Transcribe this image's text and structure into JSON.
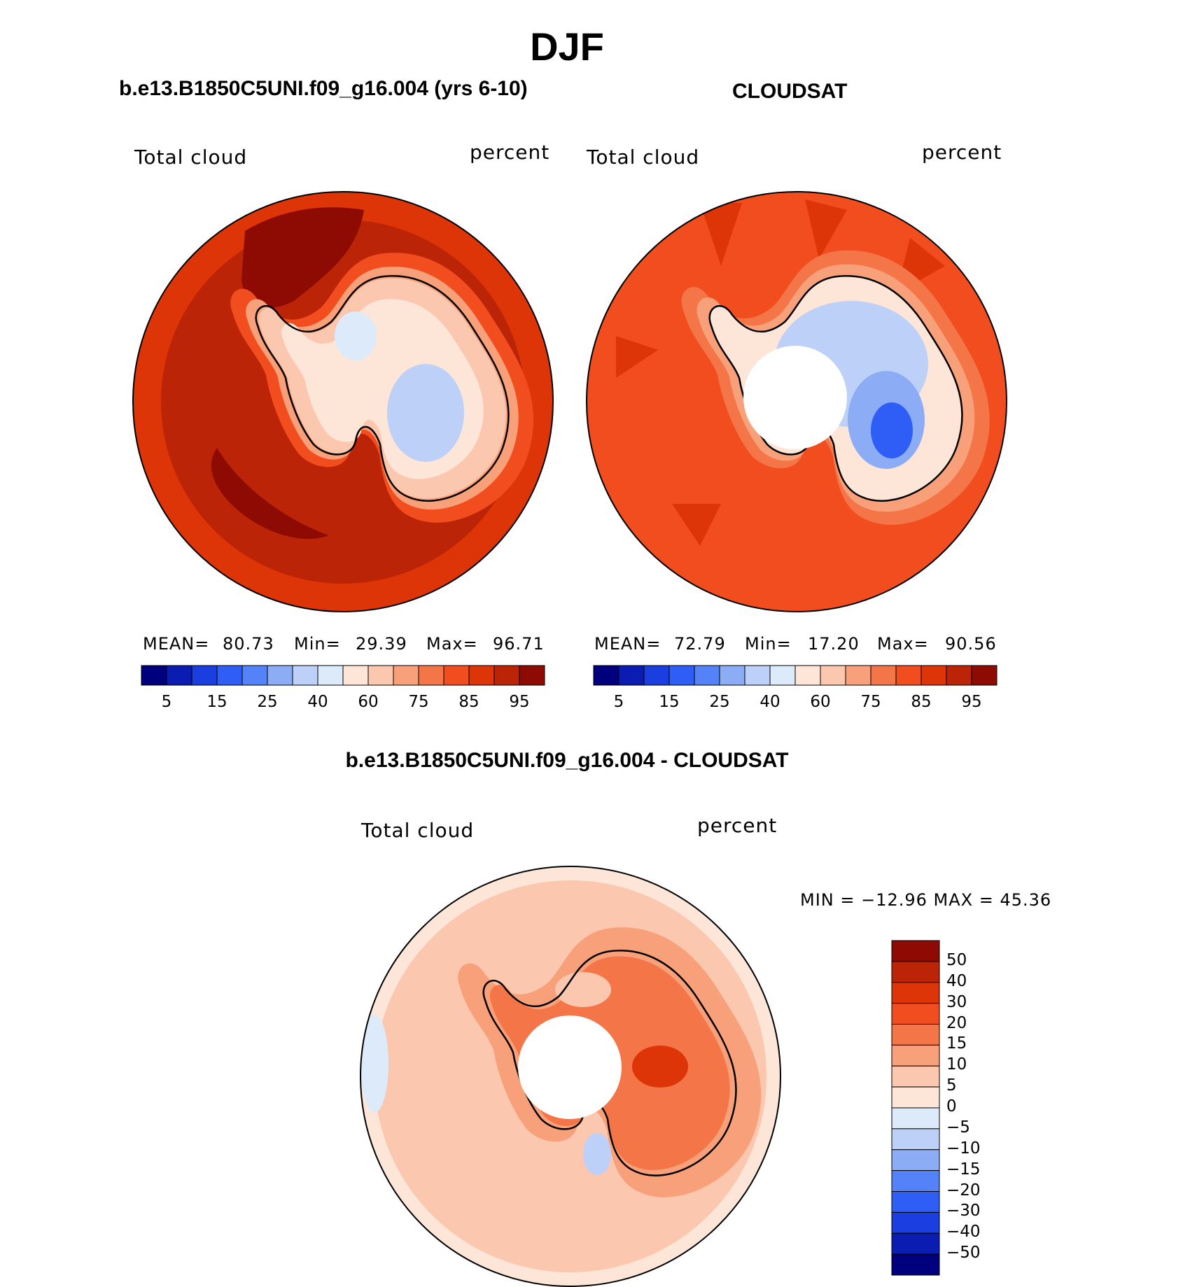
{
  "title": "DJF",
  "panels": [
    {
      "id": "model",
      "title": "b.e13.B1850C5UNI.f09_g16.004 (yrs 6-10)",
      "left_label": "Total cloud",
      "right_label": "percent",
      "stats": {
        "mean_label": "MEAN=",
        "mean": "80.73",
        "min_label": "Min=",
        "min": "29.39",
        "max_label": "Max=",
        "max": "96.71"
      },
      "colorbar_ticks": [
        "5",
        "15",
        "25",
        "40",
        "60",
        "75",
        "85",
        "95"
      ]
    },
    {
      "id": "cloudsat",
      "title": "CLOUDSAT",
      "left_label": "Total cloud",
      "right_label": "percent",
      "stats": {
        "mean_label": "MEAN=",
        "mean": "72.79",
        "min_label": "Min=",
        "min": "17.20",
        "max_label": "Max=",
        "max": "90.56"
      },
      "colorbar_ticks": [
        "5",
        "15",
        "25",
        "40",
        "60",
        "75",
        "85",
        "95"
      ]
    }
  ],
  "difference": {
    "title": "b.e13.B1850C5UNI.f09_g16.004 - CLOUDSAT",
    "left_label": "Total cloud",
    "right_label": "percent",
    "minmax": "MIN = −12.96 MAX =   45.36",
    "colorbar_ticks": [
      "50",
      "40",
      "30",
      "20",
      "15",
      "10",
      "5",
      "0",
      "−5",
      "−10",
      "−15",
      "−20",
      "−30",
      "−40",
      "−50"
    ]
  },
  "colors": {
    "seq_scale": [
      "#00007f",
      "#0a1cb2",
      "#1a3ee0",
      "#2e5ef5",
      "#5482f8",
      "#8cacf6",
      "#bcd0f8",
      "#ddeafa",
      "#fde6d8",
      "#fbc7ae",
      "#f8a07a",
      "#f47648",
      "#f24d1e",
      "#dd3507",
      "#bb2406",
      "#8e0b04"
    ],
    "div_scale": [
      "#8e0b04",
      "#bb2406",
      "#dd3507",
      "#f24d1e",
      "#f47648",
      "#f8a07a",
      "#fbc7ae",
      "#fde6d8",
      "#ddeafa",
      "#bcd0f8",
      "#8cacf6",
      "#5482f8",
      "#2e5ef5",
      "#1a3ee0",
      "#0a1cb2",
      "#00007f"
    ],
    "coast": "#000000",
    "mask": "#ffffff"
  }
}
